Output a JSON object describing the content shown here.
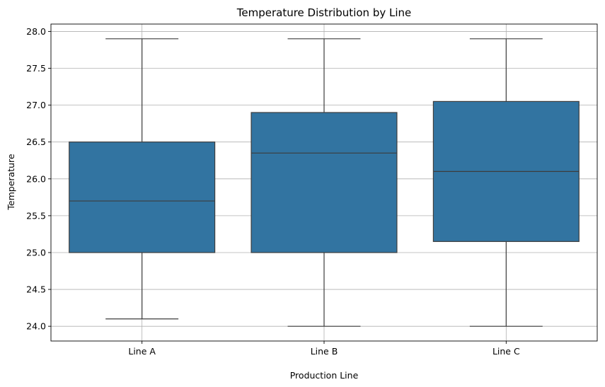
{
  "chart_data": {
    "type": "box",
    "title": "Temperature Distribution by Line",
    "xlabel": "Production Line",
    "ylabel": "Temperature",
    "ylim": [
      23.8,
      28.1
    ],
    "yticks": [
      24.0,
      24.5,
      25.0,
      25.5,
      26.0,
      26.5,
      27.0,
      27.5,
      28.0
    ],
    "ytick_labels": [
      "24.0",
      "24.5",
      "25.0",
      "25.5",
      "26.0",
      "26.5",
      "27.0",
      "27.5",
      "28.0"
    ],
    "grid": true,
    "box_color": "#3274a1",
    "line_color": "#3d3d3d",
    "categories": [
      "Line A",
      "Line B",
      "Line C"
    ],
    "boxes": [
      {
        "name": "Line A",
        "whisker_low": 24.1,
        "q1": 25.0,
        "median": 25.7,
        "q3": 26.5,
        "whisker_high": 27.9
      },
      {
        "name": "Line B",
        "whisker_low": 24.0,
        "q1": 25.0,
        "median": 26.35,
        "q3": 26.9,
        "whisker_high": 27.9
      },
      {
        "name": "Line C",
        "whisker_low": 24.0,
        "q1": 25.15,
        "median": 26.1,
        "q3": 27.05,
        "whisker_high": 27.9
      }
    ]
  }
}
